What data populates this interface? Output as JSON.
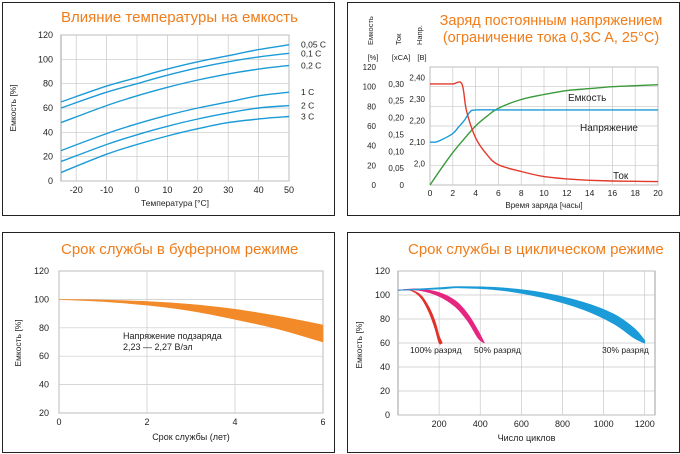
{
  "chart_data": [
    {
      "type": "line",
      "title": "Влияние температуры на емкость",
      "xlabel": "Температура [°C]",
      "ylabel": "Емкость [%]",
      "xlim": [
        -25,
        50
      ],
      "ylim": [
        0,
        120
      ],
      "xticks": [
        "-20",
        "-10",
        "0",
        "10",
        "20",
        "30",
        "40",
        "50"
      ],
      "yticks": [
        "0",
        "20",
        "40",
        "60",
        "80",
        "100",
        "120"
      ],
      "grid": true,
      "series": [
        {
          "name": "0,05 C",
          "x": [
            -25,
            -10,
            0,
            10,
            20,
            30,
            40,
            50
          ],
          "y": [
            65,
            78,
            85,
            92,
            98,
            103,
            108,
            112
          ]
        },
        {
          "name": "0,1 C",
          "x": [
            -25,
            -10,
            0,
            10,
            20,
            30,
            40,
            50
          ],
          "y": [
            60,
            73,
            80,
            87,
            93,
            98,
            102,
            105
          ]
        },
        {
          "name": "0,2 C",
          "x": [
            -25,
            -10,
            0,
            10,
            20,
            30,
            40,
            50
          ],
          "y": [
            48,
            62,
            70,
            77,
            83,
            88,
            92,
            95
          ]
        },
        {
          "name": "1 C",
          "x": [
            -25,
            -10,
            0,
            10,
            20,
            30,
            40,
            50
          ],
          "y": [
            25,
            39,
            47,
            54,
            60,
            65,
            70,
            73
          ]
        },
        {
          "name": "2 C",
          "x": [
            -25,
            -10,
            0,
            10,
            20,
            30,
            40,
            50
          ],
          "y": [
            16,
            30,
            38,
            45,
            51,
            56,
            60,
            62
          ]
        },
        {
          "name": "3 C",
          "x": [
            -25,
            -10,
            0,
            10,
            20,
            30,
            40,
            50
          ],
          "y": [
            7,
            22,
            30,
            37,
            43,
            48,
            51,
            53
          ]
        }
      ],
      "line_color": "#1b9bd7"
    },
    {
      "type": "line",
      "title": "Заряд постоянным напряжением (ограничение тока 0,3C A, 25°C)",
      "xlabel": "Время заряда [часы]",
      "xlim": [
        0,
        20
      ],
      "xticks": [
        "0",
        "2",
        "4",
        "6",
        "8",
        "10",
        "12",
        "14",
        "16",
        "18",
        "20"
      ],
      "axes": [
        {
          "header": [
            "Емкость",
            "[%]"
          ],
          "range": [
            0,
            120
          ],
          "ticks": [
            "0",
            "20",
            "40",
            "60",
            "80",
            "100",
            "120"
          ]
        },
        {
          "header": [
            "Ток",
            "[xCA]"
          ],
          "range": [
            0,
            0.35
          ],
          "ticks": [
            "0",
            "0,05",
            "0,10",
            "0,15",
            "0,20",
            "0,25",
            "0,30"
          ]
        },
        {
          "header": [
            "Напр.",
            "[В]"
          ],
          "range": [
            1.9,
            2.45
          ],
          "ticks": [
            "2,0",
            "2,10",
            "2,20",
            "2,30",
            "2,40"
          ]
        }
      ],
      "grid": true,
      "series": [
        {
          "name": "Емкость",
          "axis": 0,
          "color": "#3a9a3a",
          "x": [
            0,
            1,
            2,
            3,
            4,
            5,
            6,
            8,
            10,
            12,
            14,
            16,
            18,
            20
          ],
          "y": [
            0,
            17,
            33,
            47,
            60,
            70,
            78,
            87,
            92,
            96,
            98,
            100,
            101,
            102
          ]
        },
        {
          "name": "Напряжение",
          "axis": 2,
          "color": "#1b9bd7",
          "x": [
            0,
            0.5,
            1,
            2,
            2.5,
            3,
            3.5,
            4,
            6,
            8,
            10,
            12,
            14,
            16,
            18,
            20
          ],
          "y": [
            2.1,
            2.1,
            2.11,
            2.14,
            2.17,
            2.2,
            2.24,
            2.25,
            2.25,
            2.25,
            2.25,
            2.25,
            2.25,
            2.25,
            2.25,
            2.25
          ]
        },
        {
          "name": "Ток",
          "axis": 1,
          "color": "#e23a2a",
          "x": [
            0,
            1,
            2,
            2.8,
            3.2,
            4,
            5,
            6,
            8,
            10,
            12,
            14,
            16,
            18,
            20
          ],
          "y": [
            0.3,
            0.3,
            0.3,
            0.3,
            0.22,
            0.14,
            0.09,
            0.06,
            0.04,
            0.025,
            0.018,
            0.014,
            0.012,
            0.011,
            0.01
          ]
        }
      ]
    },
    {
      "type": "area",
      "title": "Срок службы в буферном режиме",
      "xlabel": "Срок службы (лет)",
      "ylabel": "Емкость [%]",
      "xlim": [
        0,
        6
      ],
      "ylim": [
        20,
        120
      ],
      "xticks": [
        "0",
        "2",
        "4",
        "6"
      ],
      "yticks": [
        "20",
        "40",
        "60",
        "80",
        "100",
        "120"
      ],
      "grid": true,
      "band": {
        "color": "#f28a2a",
        "x": [
          0,
          1,
          2,
          3,
          4,
          5,
          6
        ],
        "upper": [
          100,
          99.5,
          98.5,
          96.5,
          93,
          88,
          82
        ],
        "lower": [
          100,
          98.5,
          96,
          92,
          86,
          79,
          70
        ]
      },
      "annotation": [
        "Напряжение подзаряда",
        "2,23 — 2,27 В/эл"
      ]
    },
    {
      "type": "area",
      "title": "Срок службы в циклическом режиме",
      "xlabel": "Число циклов",
      "ylabel": "Емкость [%]",
      "xlim": [
        0,
        1250
      ],
      "ylim": [
        0,
        120
      ],
      "xticks": [
        "200",
        "400",
        "600",
        "800",
        "1000",
        "1200"
      ],
      "yticks": [
        "0",
        "20",
        "40",
        "60",
        "80",
        "100",
        "120"
      ],
      "grid": true,
      "bands": [
        {
          "name": "100% разряд",
          "color": "#e2302a",
          "x": [
            0,
            60,
            110,
            150,
            180,
            200,
            215
          ],
          "upper": [
            104,
            104,
            100,
            90,
            78,
            66,
            60
          ],
          "lower": [
            104,
            104,
            98,
            86,
            72,
            60,
            60
          ]
        },
        {
          "name": "50% разряд",
          "color": "#e5257f",
          "x": [
            0,
            100,
            200,
            280,
            340,
            390,
            420
          ],
          "upper": [
            104,
            105,
            102,
            95,
            84,
            70,
            60
          ],
          "lower": [
            104,
            104,
            99,
            90,
            78,
            64,
            60
          ]
        },
        {
          "name": "30% разряд",
          "color": "#1b9bd7",
          "x": [
            0,
            200,
            300,
            500,
            700,
            900,
            1050,
            1150,
            1200
          ],
          "upper": [
            104,
            106,
            107,
            106,
            102,
            94,
            84,
            72,
            62
          ],
          "lower": [
            104,
            105,
            106,
            104,
            98,
            88,
            76,
            64,
            60
          ]
        }
      ]
    }
  ]
}
